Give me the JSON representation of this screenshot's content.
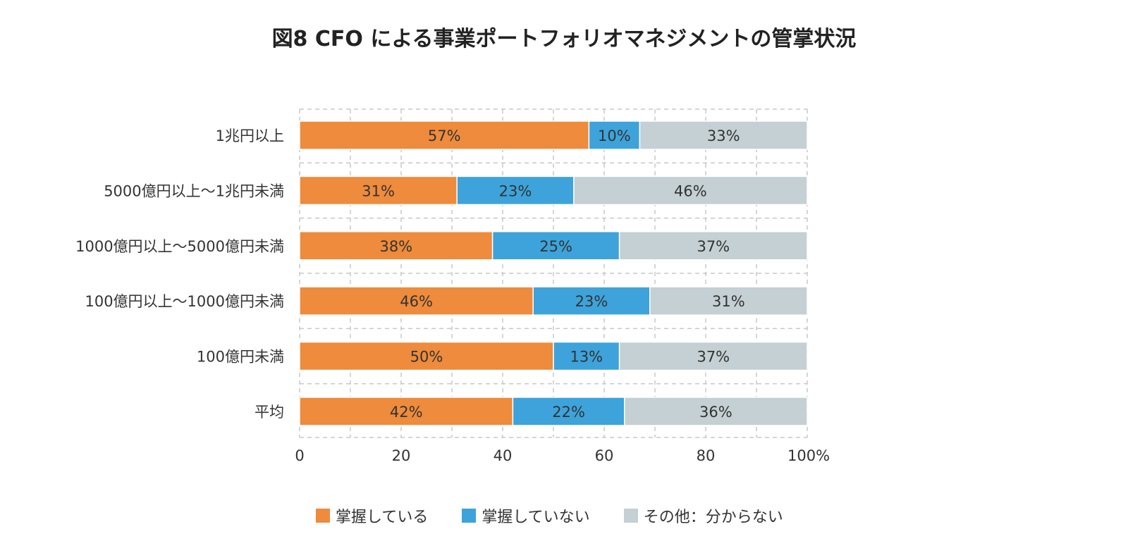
{
  "chart_data": {
    "type": "bar",
    "orientation": "horizontal",
    "stacked": true,
    "title": "図8  CFO による事業ポートフォリオマネジメントの管掌状況",
    "categories": [
      "1兆円以上",
      "5000億円以上〜1兆円未満",
      "1000億円以上〜5000億円未満",
      "100億円以上〜1000億円未満",
      "100億円未満",
      "平均"
    ],
    "series": [
      {
        "name": "掌握している",
        "color": "#EE8B3C",
        "values": [
          57,
          31,
          38,
          46,
          50,
          42
        ]
      },
      {
        "name": "掌握していない",
        "color": "#3DA3DA",
        "values": [
          10,
          23,
          25,
          23,
          13,
          22
        ]
      },
      {
        "name": "その他：分からない",
        "color": "#C4D0D3",
        "values": [
          33,
          46,
          37,
          31,
          37,
          36
        ]
      }
    ],
    "data_labels": [
      [
        "57%",
        "10%",
        "33%"
      ],
      [
        "31%",
        "23%",
        "46%"
      ],
      [
        "38%",
        "25%",
        "37%"
      ],
      [
        "46%",
        "23%",
        "31%"
      ],
      [
        "50%",
        "13%",
        "37%"
      ],
      [
        "42%",
        "22%",
        "36%"
      ]
    ],
    "xlim": [
      0,
      100
    ],
    "x_ticks": [
      "0",
      "20",
      "40",
      "60",
      "80",
      "100%"
    ],
    "grid": true,
    "legend_position": "bottom"
  }
}
